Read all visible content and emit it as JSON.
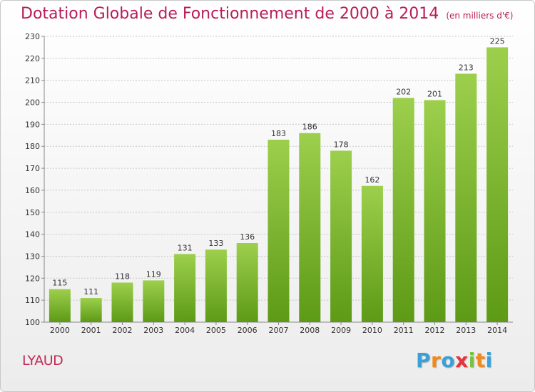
{
  "chart_data": {
    "type": "bar",
    "title": "Dotation Globale de Fonctionnement de 2000 à 2014",
    "unit": "(en milliers d'€)",
    "categories": [
      "2000",
      "2001",
      "2002",
      "2003",
      "2004",
      "2005",
      "2006",
      "2007",
      "2008",
      "2009",
      "2010",
      "2011",
      "2012",
      "2013",
      "2014"
    ],
    "values": [
      115,
      111,
      118,
      119,
      131,
      133,
      136,
      183,
      186,
      178,
      162,
      202,
      201,
      213,
      225
    ],
    "ylim": [
      100,
      230
    ],
    "yticks": [
      100,
      110,
      120,
      130,
      140,
      150,
      160,
      170,
      180,
      190,
      200,
      210,
      220,
      230
    ],
    "grid": true,
    "colors": {
      "bar_top": "#9ccf4c",
      "bar_bottom": "#5d9a16",
      "grid": "#c8c8c8"
    }
  },
  "commune": "LYAUD",
  "brand": {
    "letters": [
      "P",
      "r",
      "o",
      "x",
      "i",
      "t",
      "i"
    ],
    "colors": [
      "#3aa0d8",
      "#f08a1c",
      "#3aa0d8",
      "#e4343a",
      "#7cc242",
      "#f08a1c",
      "#3aa0d8"
    ]
  }
}
